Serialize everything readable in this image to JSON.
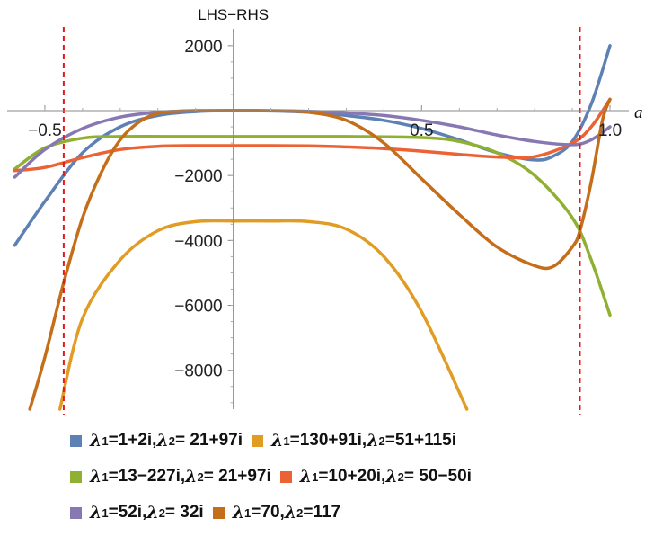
{
  "chart_data": {
    "type": "line",
    "title": "",
    "xlabel": "a",
    "ylabel": "LHS−RHS",
    "xlim": [
      -0.6,
      1.05
    ],
    "ylim": [
      -9200,
      2300
    ],
    "x_ticks": [
      -0.5,
      0.5,
      1.0
    ],
    "x_tick_labels": [
      "−0.5",
      "0.5",
      "1.0"
    ],
    "y_ticks": [
      2000,
      -2000,
      -4000,
      -6000,
      -8000
    ],
    "y_tick_labels": [
      "2000",
      "−2000",
      "−4000",
      "−6000",
      "−8000"
    ],
    "vertical_lines": [
      -0.45,
      0.92
    ],
    "vertical_line_color": "#e31a1c",
    "grid": false,
    "legend_position": "bottom",
    "series": [
      {
        "name": "λ₁=1+2i, λ₂= 21+97i",
        "color": "#5e81b5",
        "x": [
          -0.58,
          -0.5,
          -0.4,
          -0.3,
          -0.2,
          -0.1,
          0,
          0.1,
          0.2,
          0.3,
          0.4,
          0.5,
          0.6,
          0.7,
          0.8,
          0.85,
          0.9,
          0.95,
          1.0
        ],
        "y": [
          -4150,
          -2800,
          -1300,
          -500,
          -150,
          -30,
          0,
          -10,
          -50,
          -150,
          -300,
          -550,
          -900,
          -1300,
          -1520,
          -1400,
          -950,
          200,
          2000
        ]
      },
      {
        "name": "λ₁=130+91i, λ₂=51+115i",
        "color": "#e19c24",
        "x": [
          -0.46,
          -0.4,
          -0.3,
          -0.2,
          -0.1,
          0,
          0.1,
          0.2,
          0.3,
          0.4,
          0.5,
          0.62
        ],
        "y": [
          -9200,
          -6400,
          -4600,
          -3700,
          -3420,
          -3400,
          -3400,
          -3420,
          -3650,
          -4500,
          -6200,
          -9200
        ]
      },
      {
        "name": "λ₁=13−227i, λ₂= 21+97i",
        "color": "#8fb032",
        "x": [
          -0.58,
          -0.5,
          -0.4,
          -0.3,
          -0.1,
          0.1,
          0.3,
          0.5,
          0.6,
          0.7,
          0.8,
          0.9,
          0.95,
          1.0
        ],
        "y": [
          -1800,
          -1150,
          -850,
          -800,
          -800,
          -800,
          -800,
          -830,
          -950,
          -1300,
          -2000,
          -3300,
          -4600,
          -6300
        ]
      },
      {
        "name": "λ₁=10+20i, λ₂= 50−50i",
        "color": "#eb6235",
        "x": [
          -0.58,
          -0.5,
          -0.4,
          -0.3,
          -0.2,
          -0.1,
          0,
          0.1,
          0.2,
          0.3,
          0.4,
          0.5,
          0.6,
          0.7,
          0.8,
          0.9,
          0.95,
          1.0
        ],
        "y": [
          -1850,
          -1750,
          -1450,
          -1200,
          -1100,
          -1080,
          -1080,
          -1080,
          -1090,
          -1120,
          -1170,
          -1250,
          -1350,
          -1430,
          -1420,
          -1000,
          -500,
          350
        ]
      },
      {
        "name": "λ₁=52i, λ₂= 32i",
        "color": "#8778b3",
        "x": [
          -0.58,
          -0.5,
          -0.4,
          -0.3,
          -0.2,
          -0.1,
          0,
          0.1,
          0.2,
          0.3,
          0.4,
          0.5,
          0.6,
          0.7,
          0.8,
          0.9,
          0.95,
          1.0
        ],
        "y": [
          -2050,
          -1200,
          -550,
          -200,
          -50,
          -5,
          0,
          -5,
          -20,
          -70,
          -150,
          -300,
          -500,
          -750,
          -950,
          -1050,
          -900,
          -500
        ]
      },
      {
        "name": "λ₁=70, λ₂=117",
        "color": "#c56e1a",
        "x": [
          -0.54,
          -0.5,
          -0.45,
          -0.4,
          -0.35,
          -0.3,
          -0.25,
          -0.2,
          -0.15,
          -0.1,
          0,
          0.1,
          0.2,
          0.3,
          0.4,
          0.5,
          0.6,
          0.7,
          0.8,
          0.85,
          0.9,
          0.92,
          0.95,
          0.98,
          1.0
        ],
        "y": [
          -9200,
          -7600,
          -5300,
          -3300,
          -1900,
          -900,
          -350,
          -80,
          -20,
          0,
          0,
          0,
          -50,
          -300,
          -1000,
          -2100,
          -3200,
          -4200,
          -4780,
          -4800,
          -4200,
          -3700,
          -2200,
          -300,
          350
        ]
      }
    ]
  },
  "legend": {
    "rows": [
      [
        {
          "sym1": "λ",
          "sub1": "1",
          "val1": "=1+2i, ",
          "sym2": "λ",
          "sub2": "2",
          "val2": "= 21+97i",
          "color": "#5e81b5"
        },
        {
          "sym1": "λ",
          "sub1": "1",
          "val1": "=130+91i, ",
          "sym2": "λ",
          "sub2": "2",
          "val2": "=51+115i",
          "color": "#e19c24"
        }
      ],
      [
        {
          "sym1": "λ",
          "sub1": "1",
          "val1": "=13−227i, ",
          "sym2": "λ",
          "sub2": "2",
          "val2": "= 21+97i",
          "color": "#8fb032"
        },
        {
          "sym1": "λ",
          "sub1": "1",
          "val1": "=10+20i, ",
          "sym2": "λ",
          "sub2": "2",
          "val2": "= 50−50i",
          "color": "#eb6235"
        }
      ],
      [
        {
          "sym1": "λ",
          "sub1": "1",
          "val1": "=52i, ",
          "sym2": "λ",
          "sub2": "2",
          "val2": "= 32i",
          "color": "#8778b3"
        },
        {
          "sym1": "λ",
          "sub1": "1",
          "val1": "=70, ",
          "sym2": "λ",
          "sub2": "2",
          "val2": "=117",
          "color": "#c56e1a"
        }
      ]
    ]
  }
}
